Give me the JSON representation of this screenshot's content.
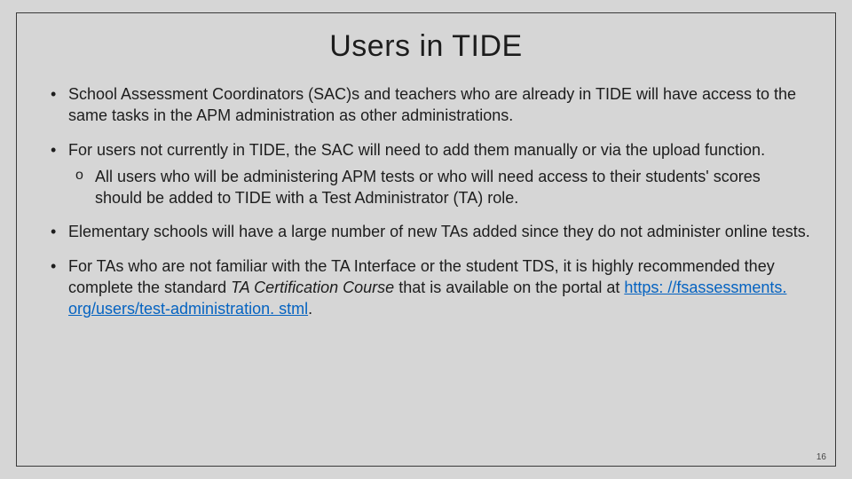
{
  "slide": {
    "title": "Users in TIDE",
    "background_color": "#d6d6d6",
    "border_color": "#3a3a3a",
    "title_fontsize": 34,
    "body_fontsize": 18,
    "text_color": "#1d1d1d",
    "link_color": "#0563c1",
    "page_number": "16",
    "bullets": [
      {
        "text": "School Assessment Coordinators (SAC)s and teachers who are already in TIDE will have access to the same tasks in the APM administration as other administrations."
      },
      {
        "text": "For users not currently in TIDE, the SAC will need to add them manually or via the upload function.",
        "sub": [
          "All users who will be administering APM tests or who will need access to their students' scores should be added to TIDE with a Test Administrator (TA) role."
        ]
      },
      {
        "text": "Elementary schools will have a large number of new TAs added since they do not administer online tests."
      },
      {
        "text_prefix": "For TAs who are not familiar with the TA Interface or the student TDS, it is highly recommended they complete the standard ",
        "italic_phrase": "TA Certification Course",
        "text_mid": " that is available on the portal at ",
        "link_text": "https: //fsassessments. org/users/test-administration. stml",
        "text_suffix": "."
      }
    ]
  }
}
